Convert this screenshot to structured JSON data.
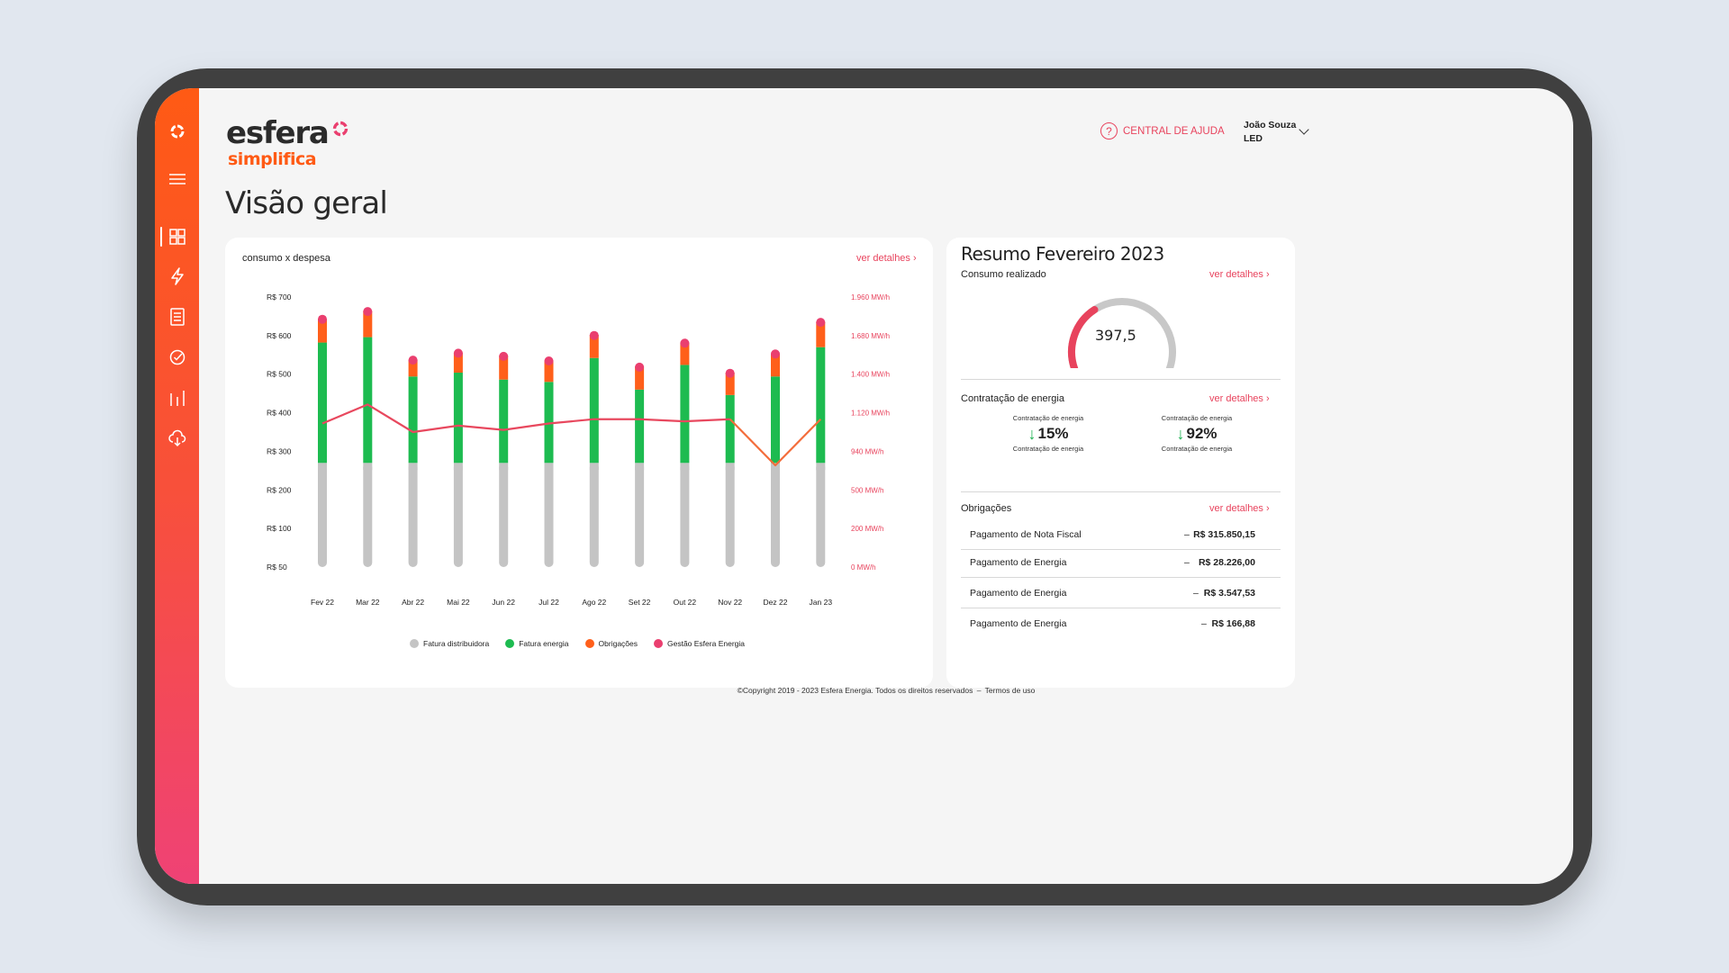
{
  "brand": {
    "name": "esfera",
    "tagline": "simplifica"
  },
  "page": {
    "title": "Visão geral"
  },
  "header": {
    "help_label": "CENTRAL DE AJUDA",
    "user_name": "João Souza",
    "user_company": "LED"
  },
  "sidebar": {
    "items": [
      {
        "icon": "esfera-logo-icon"
      },
      {
        "icon": "menu-icon"
      },
      {
        "icon": "dashboard-grid-icon"
      },
      {
        "icon": "lightning-icon"
      },
      {
        "icon": "document-icon"
      },
      {
        "icon": "check-circle-icon"
      },
      {
        "icon": "bar-chart-icon"
      },
      {
        "icon": "cloud-download-icon"
      }
    ]
  },
  "chart_card": {
    "title": "consumo x despesa",
    "details_link": "ver detalhes"
  },
  "chart_data": {
    "type": "bar",
    "title": "consumo x despesa",
    "categories": [
      "Fev 22",
      "Mar 22",
      "Abr 22",
      "Mai 22",
      "Jun 22",
      "Jul 22",
      "Ago 22",
      "Set 22",
      "Out 22",
      "Nov 22",
      "Dez 22",
      "Jan 23"
    ],
    "y_left_ticks": [
      "R$ 700",
      "R$ 600",
      "R$ 500",
      "R$ 400",
      "R$ 300",
      "R$ 200",
      "R$ 100",
      "R$ 50"
    ],
    "y_right_ticks": [
      "1.960 MW/h",
      "1.680 MW/h",
      "1.400 MW/h",
      "1.120 MW/h",
      "940 MW/h",
      "500 MW/h",
      "200 MW/h",
      "0 MW/h"
    ],
    "ylim": [
      50,
      700
    ],
    "series": [
      {
        "name": "Fatura distribuidora",
        "color": "#c4c4c4",
        "values": [
          220,
          220,
          220,
          220,
          220,
          220,
          220,
          220,
          220,
          220,
          220,
          220
        ]
      },
      {
        "name": "Fatura energia",
        "color": "#1dbb50",
        "values": [
          312,
          326,
          224,
          234,
          216,
          210,
          272,
          190,
          254,
          176,
          224,
          300
        ]
      },
      {
        "name": "Obrigações",
        "color": "#ff5f1a",
        "values": [
          62,
          68,
          44,
          52,
          62,
          56,
          60,
          60,
          58,
          58,
          60,
          66
        ]
      },
      {
        "name": "Gestão Esfera Energia",
        "color": "#ea3f6f",
        "values": [
          10,
          10,
          10,
          10,
          10,
          10,
          10,
          10,
          10,
          10,
          10,
          10
        ]
      }
    ],
    "line_series": {
      "name": "Consumo",
      "color": "#e8485e",
      "alt_color": "#f36d3b",
      "values": [
        1070,
        1180,
        1030,
        1060,
        1040,
        1070,
        1090,
        1090,
        1080,
        1090,
        780,
        1090
      ]
    },
    "legend_position": "bottom",
    "grid": false
  },
  "summary": {
    "title": "Resumo Fevereiro 2023",
    "consumo": {
      "label": "Consumo realizado",
      "details_link": "ver detalhes",
      "gauge_value": "397,5",
      "gauge_fraction": 0.35
    },
    "contratacao": {
      "label": "Contratação de energia",
      "details_link": "ver detalhes",
      "items": [
        {
          "top_label": "Contratação de energia",
          "value": "15%",
          "bottom_label": "Contratação de energia"
        },
        {
          "top_label": "Contratação de energia",
          "value": "92%",
          "bottom_label": "Contratação de energia"
        }
      ]
    },
    "obrigacoes": {
      "label": "Obrigações",
      "details_link": "ver detalhes",
      "rows": [
        {
          "label": "Pagamento de Nota Fiscal",
          "dash": "–",
          "value": "R$ 315.850,15"
        },
        {
          "label": "Pagamento de Energia",
          "dash": "–",
          "value": "R$ 28.226,00"
        },
        {
          "label": "Pagamento de Energia",
          "dash": "–",
          "value": "R$ 3.547,53"
        },
        {
          "label": "Pagamento de Energia",
          "dash": "–",
          "value": "R$ 166,88"
        }
      ]
    }
  },
  "footer": {
    "copyright": "©Copyright 2019 - 2023 Esfera Energia. Todos os direitos reservados",
    "separator": "–",
    "terms": "Termos de uso"
  }
}
